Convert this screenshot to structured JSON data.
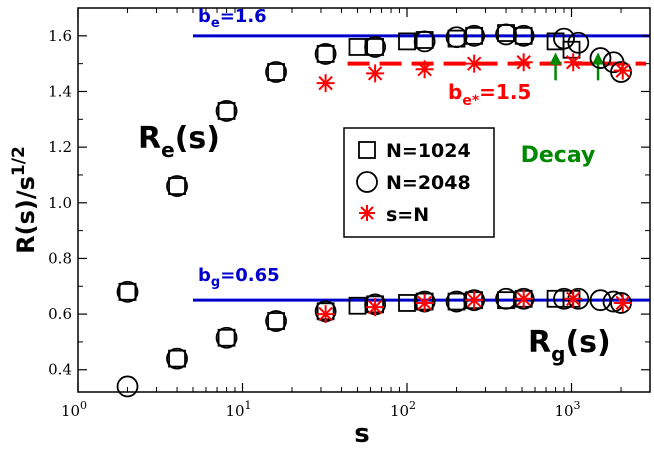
{
  "chart_data": {
    "type": "scatter",
    "xscale": "log",
    "xlim": [
      1,
      3000
    ],
    "ylim": [
      0.32,
      1.7
    ],
    "xlabel": "s",
    "ylabel_main": "R(s)/s",
    "ylabel_exp": "1/2",
    "x_ticks": [
      {
        "base": "10",
        "exp": "0",
        "value": 1
      },
      {
        "base": "10",
        "exp": "1",
        "value": 10
      },
      {
        "base": "10",
        "exp": "2",
        "value": 100
      },
      {
        "base": "10",
        "exp": "3",
        "value": 1000
      }
    ],
    "y_ticks": [
      "0.4",
      "0.6",
      "0.8",
      "1.0",
      "1.2",
      "1.4",
      "1.6"
    ],
    "grid": false,
    "legend_position": "center-right",
    "legend": [
      {
        "label": "N=1024",
        "marker": "square",
        "color": "#000000"
      },
      {
        "label": "N=2048",
        "marker": "circle",
        "color": "#000000"
      },
      {
        "label": "s=N",
        "marker": "asterisk",
        "color": "#ff0000"
      }
    ],
    "reference_lines": [
      {
        "label_main": "b",
        "label_sub": "e",
        "label_rest": "=1.6",
        "y": 1.6,
        "x_range": [
          5,
          3000
        ],
        "color": "#0000cc"
      },
      {
        "label_main": "b",
        "label_sub": "g",
        "label_rest": "=0.65",
        "y": 0.65,
        "x_range": [
          5,
          3000
        ],
        "color": "#0000cc"
      }
    ],
    "dashed_line": {
      "label_main": "b",
      "label_sub": "e*",
      "label_rest": "=1.5",
      "y": 1.5,
      "x_range": [
        32,
        3000
      ],
      "color": "#ff0000"
    },
    "curve_labels": [
      {
        "main": "R",
        "sub": "e",
        "rest": "(s)"
      },
      {
        "main": "R",
        "sub": "g",
        "rest": "(s)"
      }
    ],
    "decay": {
      "label": "Decay",
      "color": "#008800",
      "x": [
        800,
        1450
      ],
      "y_from": 1.44,
      "y_to": 1.54
    },
    "series": [
      {
        "name": "N=1024",
        "marker": "square",
        "re": [
          [
            2,
            0.68
          ],
          [
            4,
            1.06
          ],
          [
            8,
            1.33
          ],
          [
            16,
            1.47
          ],
          [
            32,
            1.535
          ],
          [
            50,
            1.56
          ],
          [
            64,
            1.56
          ],
          [
            100,
            1.58
          ],
          [
            128,
            1.585
          ],
          [
            200,
            1.59
          ],
          [
            256,
            1.6
          ],
          [
            400,
            1.61
          ],
          [
            512,
            1.6
          ],
          [
            800,
            1.58
          ],
          [
            1000,
            1.55
          ]
        ],
        "rg": [
          [
            2,
            0.68
          ],
          [
            4,
            0.44
          ],
          [
            8,
            0.515
          ],
          [
            16,
            0.575
          ],
          [
            32,
            0.61
          ],
          [
            50,
            0.63
          ],
          [
            64,
            0.635
          ],
          [
            100,
            0.64
          ],
          [
            128,
            0.645
          ],
          [
            200,
            0.645
          ],
          [
            256,
            0.65
          ],
          [
            400,
            0.65
          ],
          [
            512,
            0.655
          ],
          [
            800,
            0.655
          ],
          [
            1000,
            0.655
          ]
        ]
      },
      {
        "name": "N=2048",
        "marker": "circle",
        "re": [
          [
            2,
            0.68
          ],
          [
            4,
            1.06
          ],
          [
            8,
            1.33
          ],
          [
            16,
            1.47
          ],
          [
            32,
            1.535
          ],
          [
            64,
            1.56
          ],
          [
            128,
            1.58
          ],
          [
            200,
            1.595
          ],
          [
            256,
            1.6
          ],
          [
            400,
            1.605
          ],
          [
            512,
            1.6
          ],
          [
            900,
            1.59
          ],
          [
            1100,
            1.575
          ],
          [
            1500,
            1.52
          ],
          [
            1800,
            1.505
          ],
          [
            2000,
            1.47
          ]
        ],
        "rg": [
          [
            2,
            0.34
          ],
          [
            4,
            0.44
          ],
          [
            8,
            0.515
          ],
          [
            16,
            0.575
          ],
          [
            32,
            0.61
          ],
          [
            64,
            0.635
          ],
          [
            128,
            0.645
          ],
          [
            200,
            0.645
          ],
          [
            256,
            0.65
          ],
          [
            400,
            0.655
          ],
          [
            512,
            0.655
          ],
          [
            900,
            0.655
          ],
          [
            1100,
            0.655
          ],
          [
            1500,
            0.65
          ],
          [
            1800,
            0.645
          ],
          [
            2000,
            0.64
          ]
        ]
      },
      {
        "name": "s=N",
        "marker": "asterisk",
        "re": [
          [
            32,
            1.43
          ],
          [
            64,
            1.465
          ],
          [
            128,
            1.48
          ],
          [
            256,
            1.5
          ],
          [
            512,
            1.505
          ],
          [
            1024,
            1.505
          ],
          [
            2048,
            1.475
          ]
        ],
        "rg": [
          [
            32,
            0.6
          ],
          [
            64,
            0.625
          ],
          [
            128,
            0.64
          ],
          [
            256,
            0.65
          ],
          [
            512,
            0.655
          ],
          [
            1024,
            0.655
          ],
          [
            2048,
            0.64
          ]
        ]
      }
    ]
  }
}
